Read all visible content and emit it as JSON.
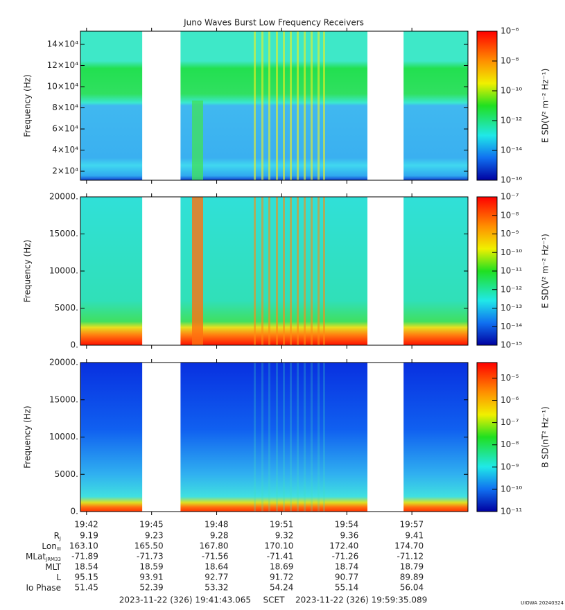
{
  "title": "Juno Waves Burst Low Frequency Receivers",
  "time_axis": {
    "xlim": [
      "19:41:43.065",
      "19:59:35.089"
    ],
    "xticks": [
      "19:42",
      "19:45",
      "19:48",
      "19:51",
      "19:54",
      "19:57"
    ],
    "data_gaps": [
      [
        "19:44:34",
        "19:46:20"
      ],
      [
        "19:54:57",
        "19:56:37"
      ]
    ]
  },
  "chart_data": [
    {
      "type": "spectrogram",
      "ylabel": "Frequency (Hz)",
      "ylim": [
        11500,
        152500
      ],
      "yticks": [
        {
          "value": 20000,
          "label": "2×10⁴"
        },
        {
          "value": 40000,
          "label": "4×10⁴"
        },
        {
          "value": 60000,
          "label": "6×10⁴"
        },
        {
          "value": 80000,
          "label": "8×10⁴"
        },
        {
          "value": 100000,
          "label": "10×10⁴"
        },
        {
          "value": 120000,
          "label": "12×10⁴"
        },
        {
          "value": 140000,
          "label": "14×10⁴"
        }
      ],
      "colorbar": {
        "label": "E SD(V² m⁻² Hz⁻¹)",
        "scale": "log",
        "lim": [
          1e-16,
          1e-06
        ],
        "ticks": [
          {
            "value": 1e-16,
            "label": "10⁻¹⁶"
          },
          {
            "value": 1e-14,
            "label": "10⁻¹⁴"
          },
          {
            "value": 1e-12,
            "label": "10⁻¹²"
          },
          {
            "value": 1e-10,
            "label": "10⁻¹⁰"
          },
          {
            "value": 1e-08,
            "label": "10⁻⁸"
          },
          {
            "value": 1e-06,
            "label": "10⁻⁶"
          }
        ]
      }
    },
    {
      "type": "spectrogram",
      "ylabel": "Frequency (Hz)",
      "ylim": [
        0,
        20000
      ],
      "yticks": [
        {
          "value": 0,
          "label": "0."
        },
        {
          "value": 5000,
          "label": "5000."
        },
        {
          "value": 10000,
          "label": "10000."
        },
        {
          "value": 15000,
          "label": "15000."
        },
        {
          "value": 20000,
          "label": "20000."
        }
      ],
      "colorbar": {
        "label": "E SD(V² m⁻² Hz⁻¹)",
        "scale": "log",
        "lim": [
          1e-15,
          1e-07
        ],
        "ticks": [
          {
            "value": 1e-15,
            "label": "10⁻¹⁵"
          },
          {
            "value": 1e-14,
            "label": "10⁻¹⁴"
          },
          {
            "value": 1e-13,
            "label": "10⁻¹³"
          },
          {
            "value": 1e-12,
            "label": "10⁻¹²"
          },
          {
            "value": 1e-11,
            "label": "10⁻¹¹"
          },
          {
            "value": 1e-10,
            "label": "10⁻¹⁰"
          },
          {
            "value": 1e-09,
            "label": "10⁻⁹"
          },
          {
            "value": 1e-08,
            "label": "10⁻⁸"
          },
          {
            "value": 1e-07,
            "label": "10⁻⁷"
          }
        ]
      }
    },
    {
      "type": "spectrogram",
      "ylabel": "Frequency (Hz)",
      "ylim": [
        0,
        20000
      ],
      "yticks": [
        {
          "value": 0,
          "label": "0."
        },
        {
          "value": 5000,
          "label": "5000."
        },
        {
          "value": 10000,
          "label": "10000."
        },
        {
          "value": 15000,
          "label": "15000."
        },
        {
          "value": 20000,
          "label": "20000."
        }
      ],
      "colorbar": {
        "label": "B SD(nT² Hz⁻¹)",
        "scale": "log",
        "lim": [
          1e-11,
          5e-05
        ],
        "ticks": [
          {
            "value": 1e-11,
            "label": "10⁻¹¹"
          },
          {
            "value": 1e-10,
            "label": "10⁻¹⁰"
          },
          {
            "value": 1e-09,
            "label": "10⁻⁹"
          },
          {
            "value": 1e-08,
            "label": "10⁻⁸"
          },
          {
            "value": 1e-07,
            "label": "10⁻⁷"
          },
          {
            "value": 1e-06,
            "label": "10⁻⁶"
          },
          {
            "value": 1e-05,
            "label": "10⁻⁵"
          }
        ]
      }
    }
  ],
  "ephemeris": {
    "rows": [
      {
        "label": "R",
        "sub": "J",
        "values": [
          "9.19",
          "9.23",
          "9.28",
          "9.32",
          "9.36",
          "9.41"
        ]
      },
      {
        "label": "Lon",
        "sub": "III",
        "values": [
          "163.10",
          "165.50",
          "167.80",
          "170.10",
          "172.40",
          "174.70"
        ]
      },
      {
        "label": "MLat",
        "sub": "JRM33",
        "values": [
          "-71.89",
          "-71.73",
          "-71.56",
          "-71.41",
          "-71.26",
          "-71.12"
        ]
      },
      {
        "label": "MLT",
        "values": [
          "18.54",
          "18.59",
          "18.64",
          "18.69",
          "18.74",
          "18.79"
        ]
      },
      {
        "label": "L",
        "values": [
          "95.15",
          "93.91",
          "92.77",
          "91.72",
          "90.77",
          "89.89"
        ]
      },
      {
        "label": "Io Phase",
        "values": [
          "51.45",
          "52.39",
          "53.32",
          "54.24",
          "55.14",
          "56.04"
        ]
      }
    ]
  },
  "footer": {
    "start": "2023-11-22 (326) 19:41:43.065",
    "scet": "SCET",
    "end": "2023-11-22 (326) 19:59:35.089",
    "stamp": "UIOWA 20240324"
  }
}
